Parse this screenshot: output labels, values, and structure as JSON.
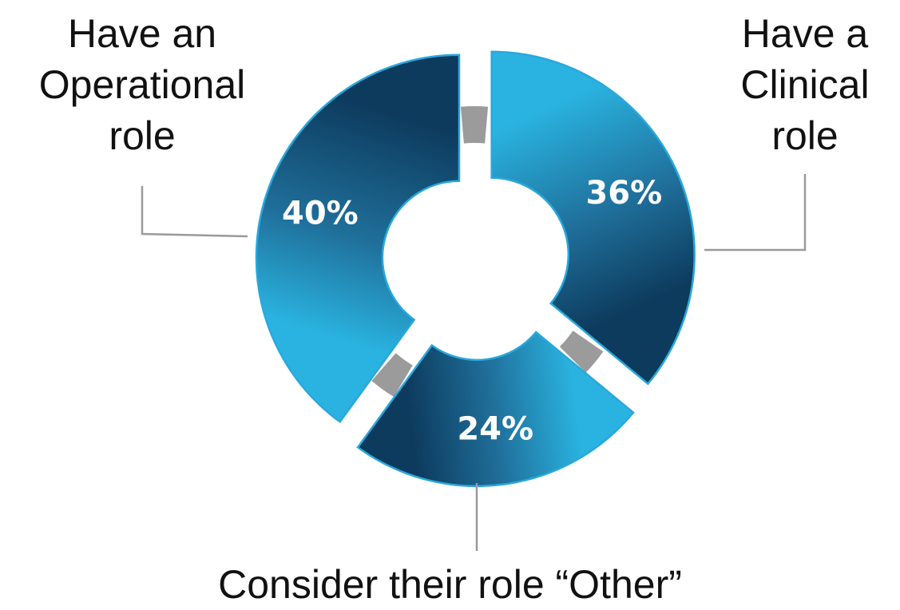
{
  "chart_data": {
    "type": "pie",
    "style": "donut",
    "slices": [
      {
        "label_lines": [
          "Have an",
          "Operational",
          "role"
        ],
        "value": 40,
        "value_label": "40%"
      },
      {
        "label_lines": [
          "Have a",
          "Clinical",
          "role"
        ],
        "value": 36,
        "value_label": "36%"
      },
      {
        "label_lines": [
          "Consider their role “Other”"
        ],
        "value": 24,
        "value_label": "24%"
      }
    ],
    "colors": {
      "dark": "#0d3b5e",
      "mid": "#1f6f9a",
      "light": "#2ab3e0",
      "edge": "#29a8dc",
      "gap_gray": "#9b9b9b",
      "leader": "#9a9a9a"
    }
  }
}
